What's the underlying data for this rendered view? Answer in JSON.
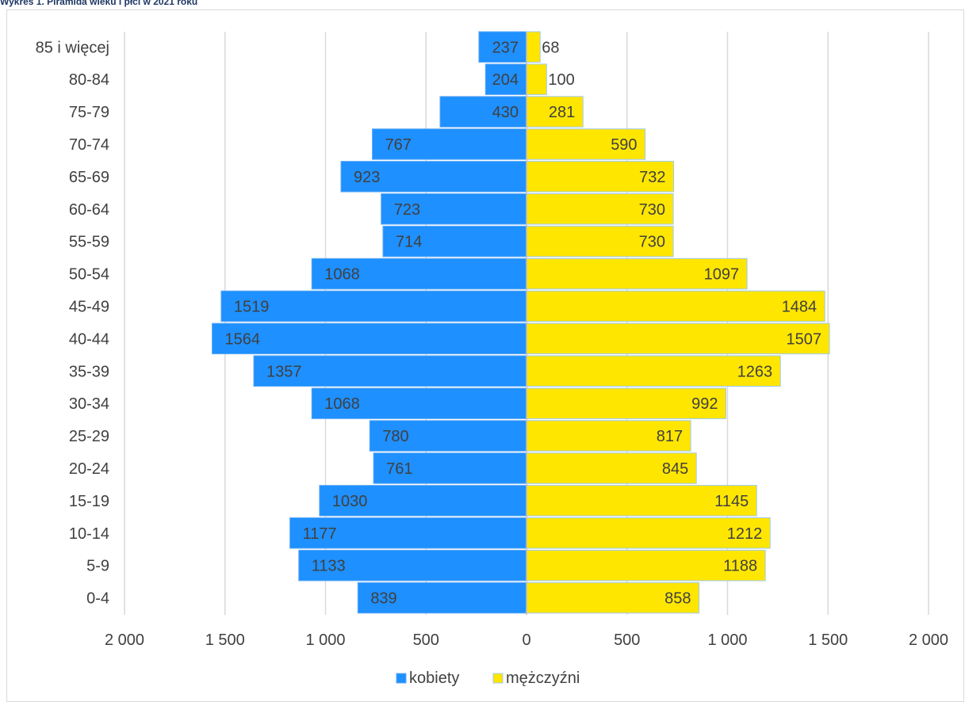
{
  "page_title": "Wykres 1. Piramida wieku i płci w 2021 roku",
  "chart_data": {
    "type": "bar",
    "orientation": "horizontal-population-pyramid",
    "categories": [
      "85 i więcej",
      "80-84",
      "75-79",
      "70-74",
      "65-69",
      "60-64",
      "55-59",
      "50-54",
      "45-49",
      "40-44",
      "35-39",
      "30-34",
      "25-29",
      "20-24",
      "15-19",
      "10-14",
      "5-9",
      "0-4"
    ],
    "series": [
      {
        "name": "kobiety",
        "color": "#1e90ff",
        "values": [
          237,
          204,
          430,
          767,
          923,
          723,
          714,
          1068,
          1519,
          1564,
          1357,
          1068,
          780,
          761,
          1030,
          1177,
          1133,
          839
        ]
      },
      {
        "name": "mężczyźni",
        "color": "#ffe600",
        "values": [
          68,
          100,
          281,
          590,
          732,
          730,
          730,
          1097,
          1484,
          1507,
          1263,
          992,
          817,
          845,
          1145,
          1212,
          1188,
          858
        ]
      }
    ],
    "x_ticks": [
      "2 000",
      "1 500",
      "1 000",
      "500",
      "0",
      "500",
      "1 000",
      "1 500",
      "2 000"
    ],
    "xlim": [
      -2000,
      2000
    ],
    "grid": "vertical",
    "legend_position": "bottom"
  }
}
